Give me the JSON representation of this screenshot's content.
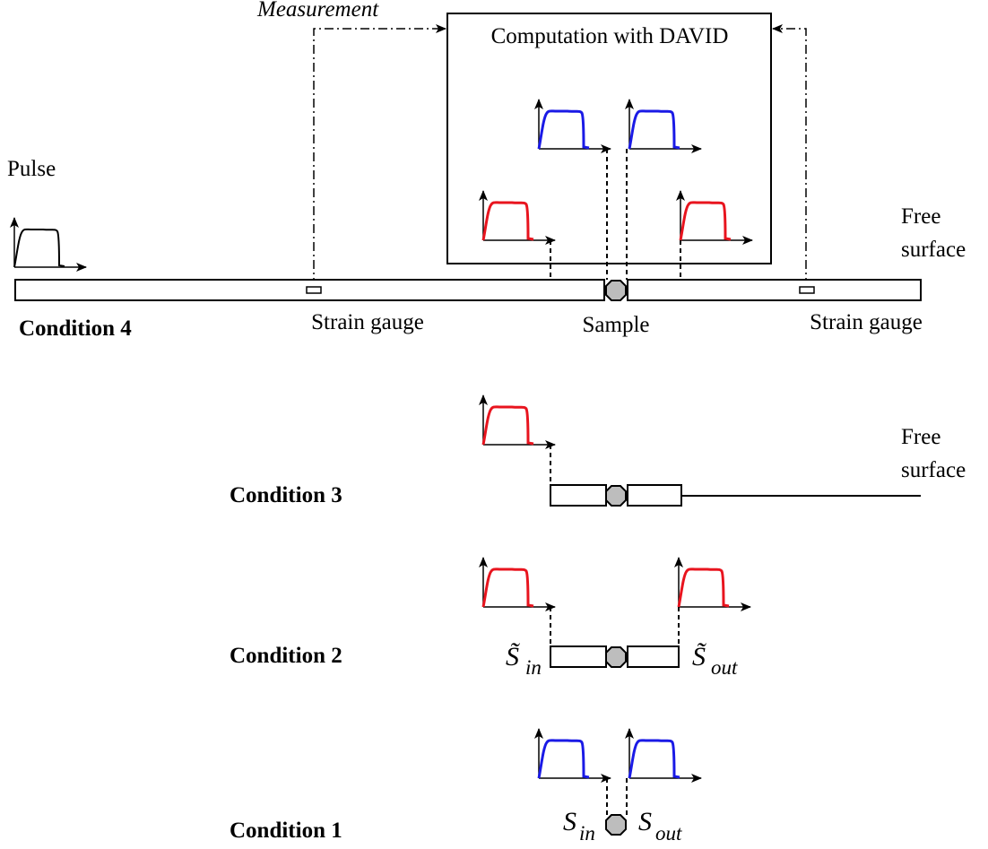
{
  "labels": {
    "measurement": "Measurement",
    "computation": "Computation with DAVID",
    "pulse": "Pulse",
    "free_surface_top_1": "Free",
    "free_surface_top_2": "surface",
    "free_surface_c3_1": "Free",
    "free_surface_c3_2": "surface",
    "strain_gauge_left": "Strain gauge",
    "strain_gauge_right": "Strain gauge",
    "sample": "Sample"
  },
  "conditions": {
    "c4": "Condition 4",
    "c3": "Condition 3",
    "c2": "Condition 2",
    "c1": "Condition 1"
  },
  "symbols": {
    "s": "S",
    "s_tilde": "S̃",
    "in": "in",
    "out": "out"
  },
  "colors": {
    "incident_pulse": "#000000",
    "corrected_signal": "#e8141e",
    "sample_signal": "#1a1ae6",
    "sample_fill": "#bdbdbd"
  }
}
